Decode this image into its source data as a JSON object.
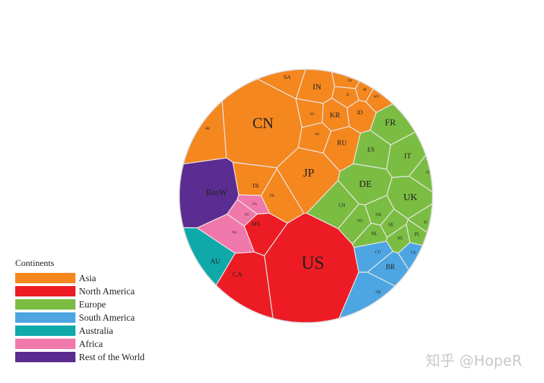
{
  "chart_data": {
    "type": "voronoi-treemap",
    "legend_title": "Continents",
    "groups": [
      {
        "name": "Asia",
        "color": "#f5871f"
      },
      {
        "name": "North America",
        "color": "#ed1c24"
      },
      {
        "name": "Europe",
        "color": "#7bbd42"
      },
      {
        "name": "South America",
        "color": "#4da6e2"
      },
      {
        "name": "Australia",
        "color": "#0fa9a9"
      },
      {
        "name": "Africa",
        "color": "#f178aa"
      },
      {
        "name": "Rest of the World",
        "color": "#5b2c91"
      }
    ],
    "cells": [
      {
        "label": "US",
        "group": "North America"
      },
      {
        "label": "CN",
        "group": "Asia"
      },
      {
        "label": "JP",
        "group": "Asia"
      },
      {
        "label": "DE",
        "group": "Europe"
      },
      {
        "label": "UK",
        "group": "Europe"
      },
      {
        "label": "FR",
        "group": "Europe"
      },
      {
        "label": "IN",
        "group": "Asia"
      },
      {
        "label": "RotW",
        "group": "Rest of the World"
      },
      {
        "label": "KR",
        "group": "Asia"
      },
      {
        "label": "IT",
        "group": "Europe"
      },
      {
        "label": "BR",
        "group": "South America"
      },
      {
        "label": "RU",
        "group": "Asia"
      },
      {
        "label": "CA",
        "group": "North America"
      },
      {
        "label": "AU",
        "group": "Australia"
      },
      {
        "label": "ES",
        "group": "Europe"
      },
      {
        "label": "ID",
        "group": "Asia"
      },
      {
        "label": "SA",
        "group": "Asia"
      },
      {
        "label": "TR",
        "group": "Asia"
      },
      {
        "label": "MX",
        "group": "North America"
      },
      {
        "label": "NL",
        "group": "Europe"
      },
      {
        "label": "CH",
        "group": "Europe"
      },
      {
        "label": "SE",
        "group": "Europe"
      },
      {
        "label": "PL",
        "group": "Europe"
      },
      {
        "label": "BE",
        "group": "Europe"
      },
      {
        "label": "AT",
        "group": "Europe"
      },
      {
        "label": "NO",
        "group": "Europe"
      },
      {
        "label": "DK",
        "group": "Europe"
      },
      {
        "label": "IE",
        "group": "Europe"
      },
      {
        "label": "AR",
        "group": "South America"
      },
      {
        "label": "CO",
        "group": "South America"
      },
      {
        "label": "VE",
        "group": "South America"
      },
      {
        "label": "ZA",
        "group": "Africa"
      },
      {
        "label": "EG",
        "group": "Africa"
      },
      {
        "label": "NG",
        "group": "Africa"
      },
      {
        "label": "TH",
        "group": "Asia"
      },
      {
        "label": "IR",
        "group": "Asia"
      },
      {
        "label": "IL",
        "group": "Asia"
      },
      {
        "label": "AE",
        "group": "Asia"
      },
      {
        "label": "SG",
        "group": "Asia"
      },
      {
        "label": "MY",
        "group": "Asia"
      },
      {
        "label": "PH",
        "group": "Asia"
      },
      {
        "label": "HK",
        "group": "Asia"
      }
    ]
  },
  "watermark": "知乎 @HopeR"
}
